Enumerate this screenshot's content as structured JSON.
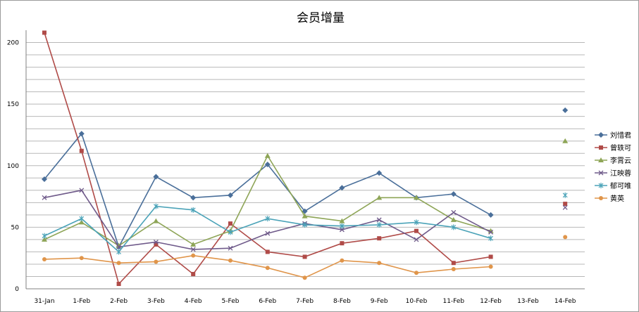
{
  "chart_data": {
    "type": "line",
    "title": "会员增量",
    "xlabel": "",
    "ylabel": "",
    "ylim": [
      0,
      210
    ],
    "y_ticks": [
      0,
      50,
      100,
      150,
      200
    ],
    "grid": true,
    "legend_position": "right",
    "categories": [
      "31-Jan",
      "1-Feb",
      "2-Feb",
      "3-Feb",
      "4-Feb",
      "5-Feb",
      "6-Feb",
      "7-Feb",
      "8-Feb",
      "9-Feb",
      "10-Feb",
      "11-Feb",
      "12-Feb",
      "13-Feb",
      "14-Feb"
    ],
    "series": [
      {
        "name": "刘惜君",
        "color": "#4a6f9a",
        "marker": "diamond",
        "values": [
          89,
          126,
          34,
          91,
          74,
          76,
          101,
          63,
          82,
          94,
          74,
          77,
          60,
          null,
          145
        ]
      },
      {
        "name": "曾轶可",
        "color": "#b04b48",
        "marker": "square",
        "values": [
          208,
          112,
          4,
          36,
          12,
          53,
          30,
          26,
          37,
          41,
          47,
          21,
          26,
          null,
          69
        ]
      },
      {
        "name": "李霄云",
        "color": "#8ea557",
        "marker": "triangle",
        "values": [
          40,
          54,
          35,
          55,
          36,
          47,
          108,
          59,
          55,
          74,
          74,
          56,
          47,
          null,
          120
        ]
      },
      {
        "name": "江映蓉",
        "color": "#6f5a8a",
        "marker": "x",
        "values": [
          74,
          80,
          34,
          38,
          32,
          33,
          45,
          53,
          48,
          56,
          40,
          62,
          46,
          null,
          66
        ]
      },
      {
        "name": "郁可唯",
        "color": "#4ba3b8",
        "marker": "star",
        "values": [
          43,
          57,
          30,
          67,
          64,
          46,
          57,
          52,
          51,
          52,
          54,
          50,
          41,
          null,
          76
        ]
      },
      {
        "name": "黄英",
        "color": "#e0954a",
        "marker": "circle",
        "values": [
          24,
          25,
          21,
          22,
          27,
          23,
          17,
          9,
          23,
          21,
          13,
          16,
          18,
          null,
          42
        ]
      }
    ]
  }
}
